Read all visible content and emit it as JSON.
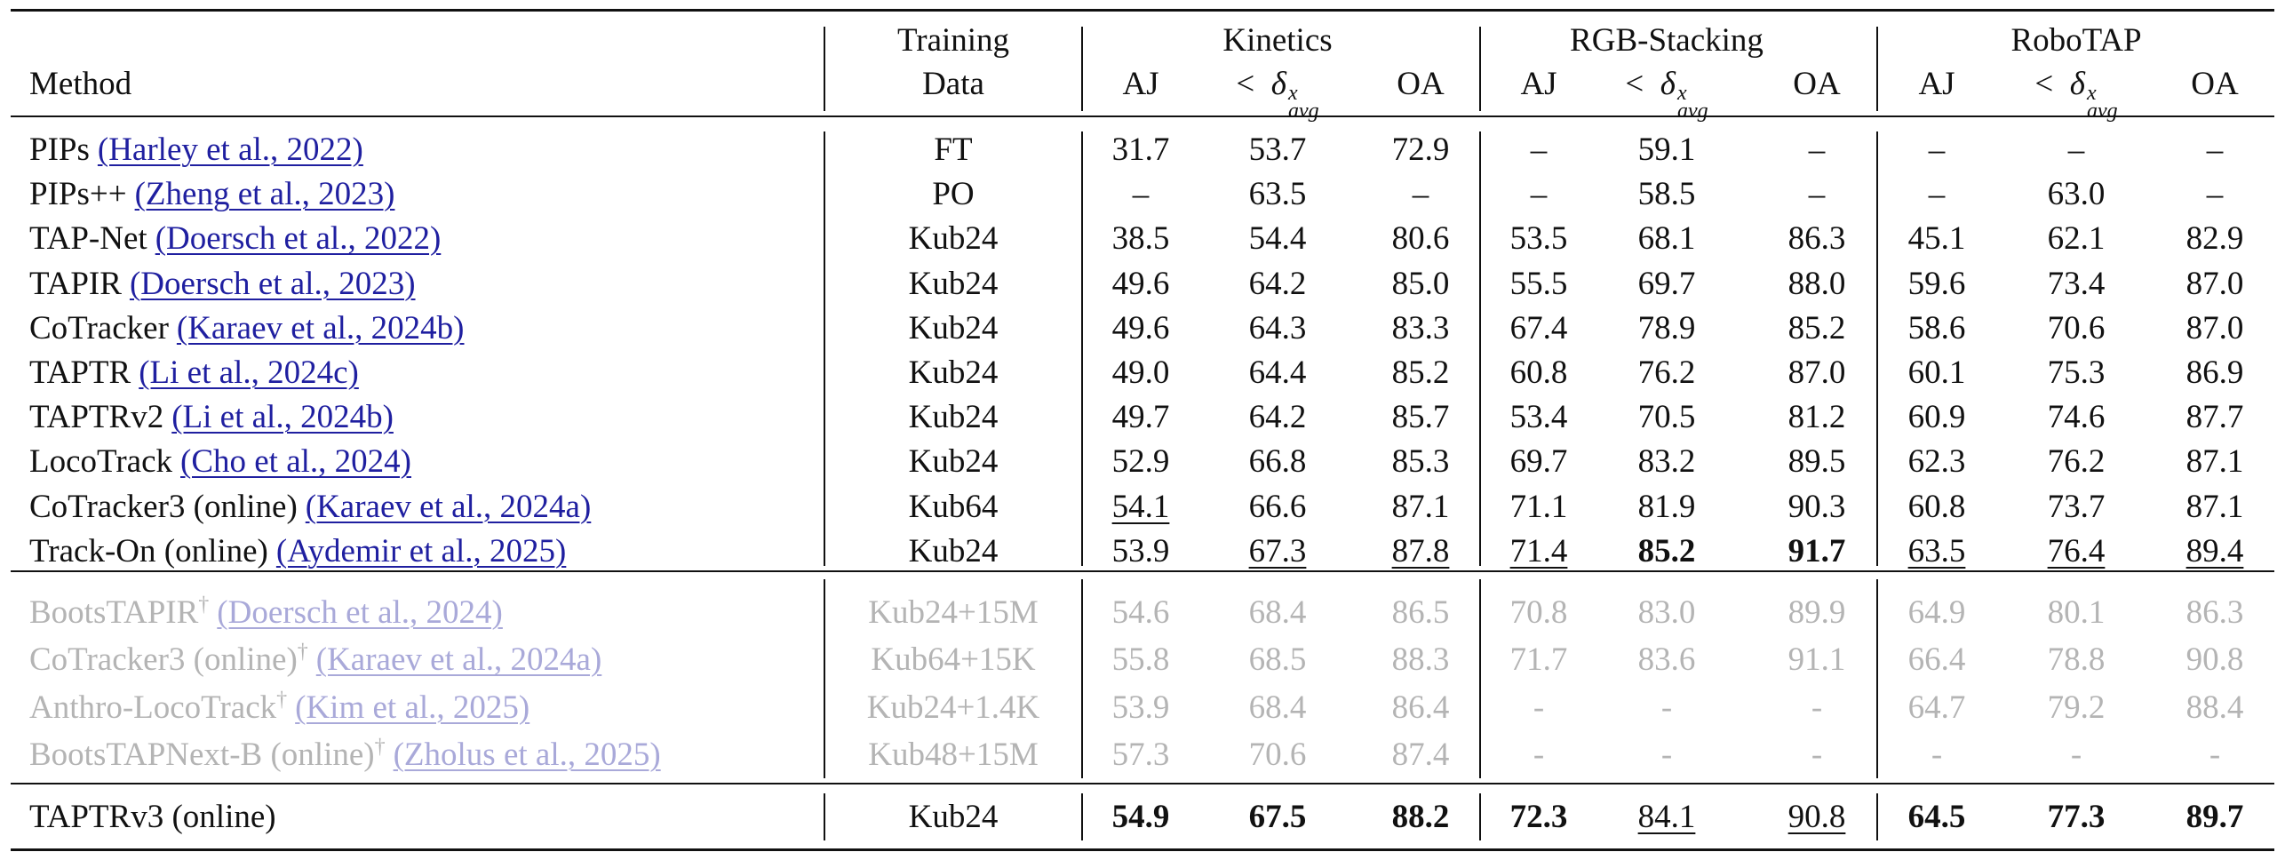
{
  "table": {
    "header": {
      "method": "Method",
      "training": [
        "Training",
        "Data"
      ],
      "groups": [
        {
          "name": "Kinetics",
          "columns": [
            "AJ",
            {
              "prefix": "<",
              "symbol": "δ",
              "sup": "x",
              "sub": "avg"
            },
            "OA"
          ]
        },
        {
          "name": "RGB-Stacking",
          "columns": [
            "AJ",
            {
              "prefix": "<",
              "symbol": "δ",
              "sup": "x",
              "sub": "avg"
            },
            "OA"
          ]
        },
        {
          "name": "RoboTAP",
          "columns": [
            "AJ",
            {
              "prefix": "<",
              "symbol": "δ",
              "sup": "x",
              "sub": "avg"
            },
            "OA"
          ]
        }
      ]
    },
    "sections": [
      [
        {
          "method": "PIPs",
          "citation": "(Harley et al., 2022)",
          "training": "FT",
          "values": [
            "31.7",
            "53.7",
            "72.9",
            "–",
            "59.1",
            "–",
            "–",
            "–",
            "–"
          ]
        },
        {
          "method": "PIPs++",
          "citation": "(Zheng et al., 2023)",
          "training": "PO",
          "values": [
            "–",
            "63.5",
            "–",
            "–",
            "58.5",
            "–",
            "–",
            "63.0",
            "–"
          ]
        },
        {
          "method": "TAP-Net",
          "citation": "(Doersch et al., 2022)",
          "training": "Kub24",
          "values": [
            "38.5",
            "54.4",
            "80.6",
            "53.5",
            "68.1",
            "86.3",
            "45.1",
            "62.1",
            "82.9"
          ]
        },
        {
          "method": "TAPIR",
          "citation": "(Doersch et al., 2023)",
          "training": "Kub24",
          "values": [
            "49.6",
            "64.2",
            "85.0",
            "55.5",
            "69.7",
            "88.0",
            "59.6",
            "73.4",
            "87.0"
          ]
        },
        {
          "method": "CoTracker",
          "citation": "(Karaev et al., 2024b)",
          "training": "Kub24",
          "values": [
            "49.6",
            "64.3",
            "83.3",
            "67.4",
            "78.9",
            "85.2",
            "58.6",
            "70.6",
            "87.0"
          ]
        },
        {
          "method": "TAPTR",
          "citation": "(Li et al., 2024c)",
          "training": "Kub24",
          "values": [
            "49.0",
            "64.4",
            "85.2",
            "60.8",
            "76.2",
            "87.0",
            "60.1",
            "75.3",
            "86.9"
          ]
        },
        {
          "method": "TAPTRv2",
          "citation": "(Li et al., 2024b)",
          "training": "Kub24",
          "values": [
            "49.7",
            "64.2",
            "85.7",
            "53.4",
            "70.5",
            "81.2",
            "60.9",
            "74.6",
            "87.7"
          ]
        },
        {
          "method": "LocoTrack",
          "citation": "(Cho et al., 2024)",
          "training": "Kub24",
          "values": [
            "52.9",
            "66.8",
            "85.3",
            "69.7",
            "83.2",
            "89.5",
            "62.3",
            "76.2",
            "87.1"
          ]
        },
        {
          "method": "CoTracker3 (online)",
          "citation": "(Karaev et al., 2024a)",
          "training": "Kub64",
          "values": [
            "54.1",
            "66.6",
            "87.1",
            "71.1",
            "81.9",
            "90.3",
            "60.8",
            "73.7",
            "87.1"
          ],
          "underline_cols": [
            0
          ]
        },
        {
          "method": "Track-On (online)",
          "citation": "(Aydemir et al., 2025)",
          "training": "Kub24",
          "values": [
            "53.9",
            "67.3",
            "87.8",
            "71.4",
            "85.2",
            "91.7",
            "63.5",
            "76.4",
            "89.4"
          ],
          "underline_cols": [
            1,
            2,
            3,
            6,
            7,
            8
          ],
          "bold_cols": [
            4,
            5
          ]
        }
      ],
      [
        {
          "method": "BootsTAPIR",
          "mark": "†",
          "citation": "(Doersch et al., 2024)",
          "training": "Kub24+15M",
          "values": [
            "54.6",
            "68.4",
            "86.5",
            "70.8",
            "83.0",
            "89.9",
            "64.9",
            "80.1",
            "86.3"
          ],
          "faded": true
        },
        {
          "method": "CoTracker3 (online)",
          "mark": "†",
          "citation": "(Karaev et al., 2024a)",
          "training": "Kub64+15K",
          "values": [
            "55.8",
            "68.5",
            "88.3",
            "71.7",
            "83.6",
            "91.1",
            "66.4",
            "78.8",
            "90.8"
          ],
          "faded": true
        },
        {
          "method": "Anthro-LocoTrack",
          "mark": "†",
          "citation": "(Kim et al., 2025)",
          "training": "Kub24+1.4K",
          "values": [
            "53.9",
            "68.4",
            "86.4",
            "-",
            "-",
            "-",
            "64.7",
            "79.2",
            "88.4"
          ],
          "faded": true
        },
        {
          "method": "BootsTAPNext-B (online)",
          "mark": "†",
          "citation": "(Zholus et al., 2025)",
          "training": "Kub48+15M",
          "values": [
            "57.3",
            "70.6",
            "87.4",
            "-",
            "-",
            "-",
            "-",
            "-",
            "-"
          ],
          "faded": true
        }
      ],
      [
        {
          "method": "TAPTRv3 (online)",
          "training": "Kub24",
          "values": [
            "54.9",
            "67.5",
            "88.2",
            "72.3",
            "84.1",
            "90.8",
            "64.5",
            "77.3",
            "89.7"
          ],
          "bold_cols": [
            0,
            1,
            2,
            3,
            6,
            7,
            8
          ],
          "underline_cols": [
            4,
            5
          ]
        }
      ]
    ]
  }
}
